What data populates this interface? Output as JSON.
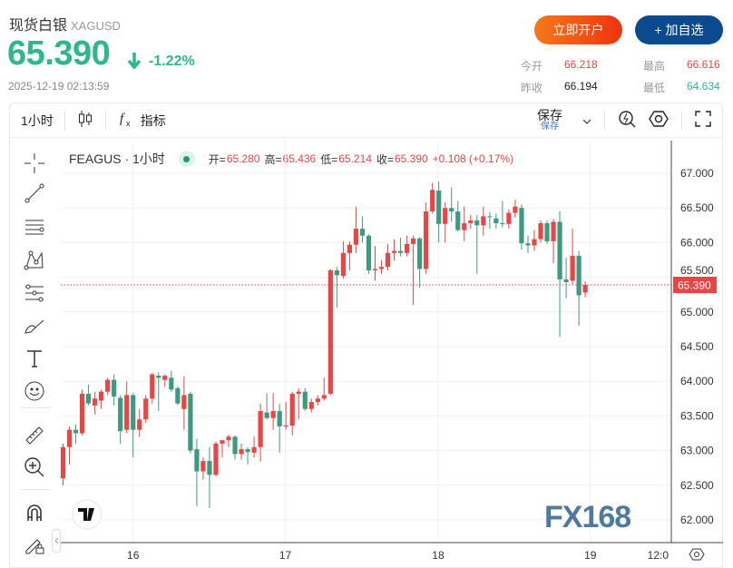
{
  "header": {
    "name": "现货白银",
    "symbol": "XAGUSD",
    "price": "65.390",
    "change_pct": "-1.22%",
    "timestamp": "2025-12-19 02:13:59",
    "open_account": "立即开户",
    "add_watch": "+ 加自选"
  },
  "stats": {
    "open_label": "今开",
    "open": "66.218",
    "high_label": "最高",
    "high": "66.616",
    "prev_label": "昨收",
    "prev": "66.194",
    "low_label": "最低",
    "low": "64.634"
  },
  "toolbar": {
    "interval": "1小时",
    "indicators": "指标",
    "save": "保存",
    "save_sub": "保存"
  },
  "legend": {
    "symbol": "FEAGUS · 1小时",
    "o_label": "开=",
    "o": "65.280",
    "h_label": "高=",
    "h": "65.436",
    "l_label": "低=",
    "l": "65.214",
    "c_label": "收=",
    "c": "65.390",
    "chg": "+0.108 (+0.17%)"
  },
  "colors": {
    "up": "#e84545",
    "down": "#3d9a80",
    "accent": "#2eb88a"
  },
  "watermark": "FX168",
  "chart_data": {
    "type": "candlestick",
    "y_ticks": [
      "67.000",
      "66.500",
      "66.000",
      "65.500",
      "65.000",
      "64.500",
      "64.000",
      "63.500",
      "63.000",
      "62.500",
      "62.000"
    ],
    "ylim": [
      61.8,
      67.2
    ],
    "last_price": "65.390",
    "x_ticks": [
      {
        "label": "16",
        "candle": 11
      },
      {
        "label": "17",
        "candle": 34.9
      },
      {
        "label": "18",
        "candle": 58.9
      },
      {
        "label": "19",
        "candle": 82.8
      },
      {
        "label": "12:0",
        "candle": 94.8
      }
    ],
    "candles": [
      [
        62.6,
        63.1,
        62.5,
        63.05
      ],
      [
        63.05,
        63.35,
        62.8,
        63.3
      ],
      [
        63.3,
        63.38,
        63.1,
        63.25
      ],
      [
        63.25,
        63.88,
        63.22,
        63.82
      ],
      [
        63.82,
        63.95,
        63.65,
        63.68
      ],
      [
        63.65,
        63.85,
        63.52,
        63.75
      ],
      [
        63.72,
        63.88,
        63.6,
        63.85
      ],
      [
        63.85,
        64.05,
        63.8,
        64.02
      ],
      [
        64.02,
        64.1,
        63.65,
        63.78
      ],
      [
        63.76,
        63.8,
        63.1,
        63.28
      ],
      [
        63.3,
        64.0,
        63.25,
        63.8
      ],
      [
        63.8,
        63.83,
        62.9,
        63.3
      ],
      [
        63.3,
        63.6,
        63.2,
        63.45
      ],
      [
        63.45,
        63.8,
        63.4,
        63.75
      ],
      [
        63.75,
        64.12,
        63.68,
        64.1
      ],
      [
        64.08,
        64.13,
        63.57,
        64.05
      ],
      [
        64.02,
        64.1,
        63.92,
        64.08
      ],
      [
        64.05,
        64.15,
        63.85,
        63.88
      ],
      [
        63.9,
        63.93,
        63.66,
        63.68
      ],
      [
        63.6,
        64.07,
        63.3,
        63.8
      ],
      [
        63.82,
        63.85,
        62.96,
        63.0
      ],
      [
        63.02,
        63.17,
        62.2,
        62.7
      ],
      [
        62.7,
        62.9,
        62.58,
        62.85
      ],
      [
        62.85,
        63.05,
        62.17,
        62.65
      ],
      [
        62.65,
        63.13,
        62.63,
        63.1
      ],
      [
        63.1,
        63.15,
        62.9,
        63.15
      ],
      [
        63.15,
        63.23,
        63.05,
        63.2
      ],
      [
        63.2,
        63.22,
        62.87,
        62.95
      ],
      [
        62.95,
        63.1,
        62.87,
        63.02
      ],
      [
        63.02,
        63.05,
        62.8,
        62.98
      ],
      [
        62.97,
        63.2,
        62.9,
        63.05
      ],
      [
        63.05,
        63.68,
        62.84,
        63.57
      ],
      [
        63.55,
        63.83,
        63.45,
        63.47
      ],
      [
        63.47,
        63.83,
        63.3,
        63.57
      ],
      [
        63.57,
        63.67,
        62.97,
        63.35
      ],
      [
        63.35,
        63.7,
        63.3,
        63.36
      ],
      [
        63.36,
        63.85,
        63.22,
        63.82
      ],
      [
        63.82,
        63.9,
        63.45,
        63.85
      ],
      [
        63.85,
        63.9,
        63.57,
        63.6
      ],
      [
        63.6,
        63.75,
        63.55,
        63.7
      ],
      [
        63.7,
        63.8,
        63.65,
        63.75
      ],
      [
        63.75,
        64.05,
        63.72,
        63.8
      ],
      [
        63.82,
        65.62,
        63.8,
        65.6
      ],
      [
        65.6,
        65.65,
        65.06,
        65.53
      ],
      [
        65.52,
        66.02,
        65.48,
        65.85
      ],
      [
        65.85,
        66.02,
        65.6,
        65.97
      ],
      [
        65.97,
        66.52,
        65.85,
        66.2
      ],
      [
        66.2,
        66.38,
        66.0,
        66.1
      ],
      [
        66.1,
        66.12,
        65.55,
        65.6
      ],
      [
        65.6,
        65.95,
        65.45,
        65.62
      ],
      [
        65.62,
        65.75,
        65.55,
        65.65
      ],
      [
        65.65,
        65.98,
        65.6,
        65.85
      ],
      [
        65.85,
        66.05,
        65.74,
        65.88
      ],
      [
        65.88,
        66.07,
        65.8,
        65.85
      ],
      [
        65.85,
        66.1,
        65.8,
        65.98
      ],
      [
        65.98,
        66.1,
        65.1,
        66.06
      ],
      [
        66.06,
        66.08,
        65.35,
        65.62
      ],
      [
        65.62,
        66.58,
        65.55,
        66.45
      ],
      [
        66.45,
        66.86,
        66.42,
        66.76
      ],
      [
        66.75,
        66.88,
        66.0,
        66.27
      ],
      [
        66.27,
        66.58,
        66.0,
        66.5
      ],
      [
        66.5,
        66.8,
        66.3,
        66.45
      ],
      [
        66.45,
        66.6,
        66.16,
        66.18
      ],
      [
        66.18,
        66.52,
        66.02,
        66.28
      ],
      [
        66.28,
        66.4,
        66.2,
        66.32
      ],
      [
        66.32,
        66.4,
        65.55,
        66.25
      ],
      [
        66.25,
        66.52,
        66.1,
        66.38
      ],
      [
        66.38,
        66.44,
        66.2,
        66.37
      ],
      [
        66.35,
        66.42,
        66.2,
        66.28
      ],
      [
        66.28,
        66.6,
        66.22,
        66.27
      ],
      [
        66.27,
        66.48,
        66.2,
        66.43
      ],
      [
        66.43,
        66.62,
        66.36,
        66.52
      ],
      [
        66.5,
        66.55,
        65.9,
        65.99
      ],
      [
        65.99,
        66.1,
        65.85,
        65.96
      ],
      [
        65.96,
        66.18,
        65.88,
        66.05
      ],
      [
        66.05,
        66.32,
        66.0,
        66.28
      ],
      [
        66.28,
        66.32,
        65.98,
        66.02
      ],
      [
        66.02,
        66.34,
        65.7,
        66.3
      ],
      [
        66.3,
        66.45,
        64.64,
        65.47
      ],
      [
        65.47,
        65.78,
        65.2,
        65.43
      ],
      [
        65.45,
        66.2,
        65.4,
        65.81
      ],
      [
        65.81,
        65.88,
        64.8,
        65.24
      ],
      [
        65.28,
        65.44,
        65.21,
        65.39
      ]
    ]
  },
  "left_tools": [
    "crosshair-icon",
    "trend-line-icon",
    "horizontal-lines-icon",
    "pattern-icon",
    "fib-icon",
    "brush-icon",
    "text-icon",
    "emoji-icon",
    "ruler-icon",
    "zoom-in-icon",
    "magnet-icon",
    "lock-pencil-icon"
  ]
}
